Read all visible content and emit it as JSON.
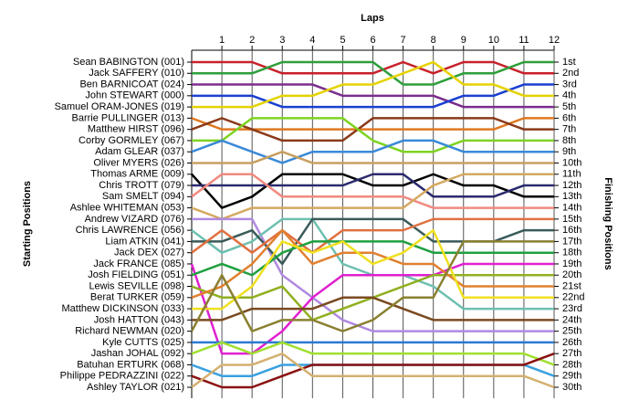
{
  "chart_data": {
    "type": "line",
    "x_label": "Laps",
    "y_label": "Starting Positions",
    "y2_label": "Finishing Positions",
    "x": [
      0,
      1,
      2,
      3,
      4,
      5,
      6,
      7,
      8,
      9,
      10,
      11,
      12
    ],
    "xlim": [
      0,
      12
    ],
    "xticks": [
      1,
      2,
      3,
      4,
      5,
      6,
      7,
      8,
      9,
      10,
      11,
      12
    ],
    "ylim": [
      1,
      30
    ],
    "grid": true,
    "finishing_labels": [
      "1st",
      "2nd",
      "3rd",
      "4th",
      "5th",
      "6th",
      "7th",
      "8th",
      "9th",
      "10th",
      "11th",
      "12th",
      "13th",
      "14th",
      "15th",
      "16th",
      "17th",
      "18th",
      "19th",
      "20th",
      "21st",
      "22nd",
      "23rd",
      "24th",
      "25th",
      "26th",
      "27th",
      "28th",
      "29th",
      "30th"
    ],
    "series": [
      {
        "name": "Sean BABINGTON (001)",
        "color": "#c8202a",
        "values": [
          1,
          1,
          1,
          2,
          2,
          2,
          2,
          1,
          2,
          1,
          1,
          2,
          2
        ]
      },
      {
        "name": "Jack SAFFERY (010)",
        "color": "#2e9e3a",
        "values": [
          2,
          2,
          2,
          1,
          1,
          1,
          1,
          3,
          3,
          2,
          2,
          1,
          1
        ]
      },
      {
        "name": "Ben BARNICOAT (024)",
        "color": "#7b2d8e",
        "values": [
          3,
          3,
          3,
          3,
          3,
          4,
          4,
          4,
          4,
          5,
          5,
          5,
          5
        ]
      },
      {
        "name": "John STEWART (000)",
        "color": "#1a3fd0",
        "values": [
          4,
          4,
          4,
          5,
          5,
          5,
          5,
          5,
          5,
          4,
          4,
          3,
          3
        ]
      },
      {
        "name": "Samuel ORAM-JONES (019)",
        "color": "#e6d200",
        "values": [
          5,
          5,
          5,
          4,
          4,
          3,
          3,
          2,
          1,
          3,
          3,
          4,
          4
        ]
      },
      {
        "name": "Barrie PULLINGER (013)",
        "color": "#e07820",
        "values": [
          6,
          7,
          7,
          7,
          7,
          7,
          7,
          7,
          7,
          7,
          7,
          6,
          6
        ]
      },
      {
        "name": "Matthew HIRST (096)",
        "color": "#8b3a1a",
        "values": [
          7,
          6,
          7,
          8,
          8,
          8,
          6,
          6,
          6,
          6,
          6,
          7,
          7
        ]
      },
      {
        "name": "Corby GORMLEY (067)",
        "color": "#7ed321",
        "values": [
          8,
          8,
          6,
          6,
          6,
          6,
          8,
          9,
          9,
          8,
          8,
          8,
          8
        ]
      },
      {
        "name": "Adam GLEAR (037)",
        "color": "#3a8ad8",
        "values": [
          9,
          8,
          9,
          10,
          9,
          9,
          9,
          8,
          8,
          9,
          9,
          9,
          9
        ]
      },
      {
        "name": "Oliver MYERS (026)",
        "color": "#c8a060",
        "values": [
          10,
          10,
          10,
          9,
          10,
          10,
          10,
          10,
          10,
          10,
          10,
          10,
          10
        ]
      },
      {
        "name": "Thomas ARME (009)",
        "color": "#000000",
        "values": [
          11,
          14,
          13,
          11,
          11,
          11,
          12,
          12,
          11,
          12,
          12,
          13,
          13
        ]
      },
      {
        "name": "Chris TROTT (079)",
        "color": "#2a2a6e",
        "values": [
          12,
          12,
          12,
          12,
          12,
          12,
          11,
          11,
          13,
          13,
          13,
          12,
          12
        ]
      },
      {
        "name": "Sam SMELT (094)",
        "color": "#f08a80",
        "values": [
          13,
          11,
          11,
          13,
          13,
          13,
          13,
          13,
          14,
          14,
          14,
          14,
          14
        ]
      },
      {
        "name": "Ashlee WHITEMAN (053)",
        "color": "#d4a860",
        "values": [
          14,
          15,
          14,
          14,
          14,
          14,
          14,
          14,
          12,
          11,
          11,
          11,
          11
        ]
      },
      {
        "name": "Andrew VIZARD (076)",
        "color": "#b088e0",
        "values": [
          15,
          15,
          15,
          20,
          22,
          24,
          25,
          25,
          25,
          25,
          25,
          25,
          25
        ]
      },
      {
        "name": "Chris LAWRENCE (056)",
        "color": "#6ec0b0",
        "values": [
          16,
          18,
          17,
          15,
          15,
          19,
          20,
          20,
          21,
          23,
          23,
          23,
          23
        ]
      },
      {
        "name": "Liam ATKIN (041)",
        "color": "#3a5a5a",
        "values": [
          17,
          17,
          16,
          19,
          15,
          15,
          15,
          15,
          17,
          17,
          17,
          16,
          16
        ]
      },
      {
        "name": "Jack DEX (027)",
        "color": "#e07040",
        "values": [
          18,
          16,
          18,
          16,
          18,
          16,
          16,
          16,
          15,
          15,
          15,
          15,
          15
        ]
      },
      {
        "name": "Jack FRANCE (085)",
        "color": "#e020d0",
        "values": [
          19,
          27,
          27,
          25,
          22,
          20,
          20,
          20,
          20,
          19,
          19,
          19,
          19
        ]
      },
      {
        "name": "Josh FIELDING (051)",
        "color": "#20a040",
        "values": [
          20,
          19,
          20,
          18,
          17,
          17,
          17,
          17,
          18,
          18,
          18,
          18,
          18
        ]
      },
      {
        "name": "Lewis SEVILLE (098)",
        "color": "#90b020",
        "values": [
          21,
          22,
          22,
          21,
          24,
          23,
          22,
          21,
          20,
          20,
          20,
          20,
          20
        ]
      },
      {
        "name": "Berat TURKER (059)",
        "color": "#e08030",
        "values": [
          22,
          21,
          19,
          16,
          19,
          18,
          18,
          19,
          19,
          21,
          21,
          21,
          21
        ]
      },
      {
        "name": "Matthew DICKINSON (033)",
        "color": "#f0e020",
        "values": [
          23,
          23,
          21,
          17,
          18,
          17,
          19,
          18,
          16,
          22,
          22,
          22,
          22
        ]
      },
      {
        "name": "Josh HATTON (043)",
        "color": "#7a4a20",
        "values": [
          24,
          24,
          23,
          23,
          23,
          22,
          22,
          23,
          24,
          24,
          24,
          24,
          24
        ]
      },
      {
        "name": "Richard NEWMAN (020)",
        "color": "#8a8030",
        "values": [
          25,
          20,
          25,
          24,
          24,
          25,
          24,
          22,
          22,
          17,
          17,
          17,
          17
        ]
      },
      {
        "name": "Kyle CUTTS (025)",
        "color": "#2a7ad0",
        "values": [
          26,
          26,
          26,
          26,
          26,
          26,
          26,
          26,
          26,
          26,
          26,
          26,
          26
        ]
      },
      {
        "name": "Jashan JOHAL (092)",
        "color": "#a0e030",
        "values": [
          27,
          26,
          27,
          26,
          27,
          27,
          27,
          27,
          27,
          27,
          27,
          27,
          28
        ]
      },
      {
        "name": "Batuhan ERTURK (068)",
        "color": "#3aa0e0",
        "values": [
          28,
          29,
          29,
          28,
          28,
          28,
          28,
          28,
          28,
          28,
          28,
          28,
          29
        ]
      },
      {
        "name": "Philippe PEDRAZZINI (022)",
        "color": "#8a1010",
        "values": [
          29,
          30,
          30,
          29,
          28,
          28,
          28,
          28,
          28,
          28,
          28,
          28,
          27
        ]
      },
      {
        "name": "Ashley TAYLOR (021)",
        "color": "#d4b070",
        "values": [
          30,
          28,
          28,
          27,
          29,
          29,
          29,
          29,
          29,
          29,
          29,
          29,
          30
        ]
      }
    ]
  }
}
